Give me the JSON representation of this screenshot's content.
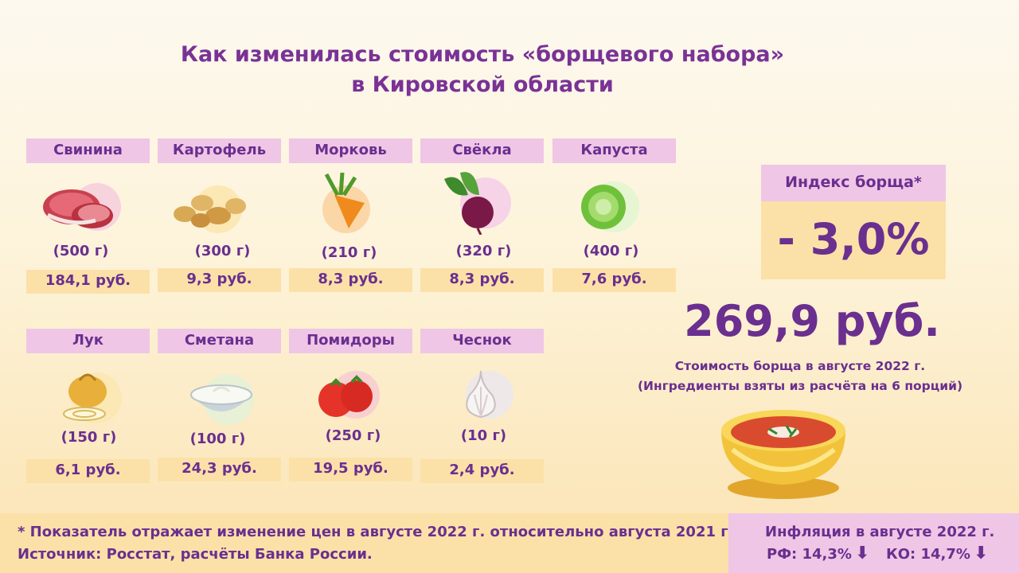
{
  "title": {
    "line1": "Как изменилась стоимость «борщевого набора»",
    "line2": "в Кировской области"
  },
  "ingredients": [
    {
      "name": "Свинина",
      "weight": "(500 г)",
      "price": "184,1 руб.",
      "icon": "pork-icon"
    },
    {
      "name": "Картофель",
      "weight": "(300 г)",
      "price": "9,3 руб.",
      "icon": "potato-icon"
    },
    {
      "name": "Морковь",
      "weight": "(210 г)",
      "price": "8,3 руб.",
      "icon": "carrot-icon"
    },
    {
      "name": "Свёкла",
      "weight": "(320 г)",
      "price": "8,3 руб.",
      "icon": "beet-icon"
    },
    {
      "name": "Капуста",
      "weight": "(400 г)",
      "price": "7,6 руб.",
      "icon": "cabbage-icon"
    },
    {
      "name": "Лук",
      "weight": "(150 г)",
      "price": "6,1 руб.",
      "icon": "onion-icon"
    },
    {
      "name": "Сметана",
      "weight": "(100 г)",
      "price": "24,3 руб.",
      "icon": "sour-cream-icon"
    },
    {
      "name": "Помидоры",
      "weight": "(250 г)",
      "price": "19,5 руб.",
      "icon": "tomato-icon"
    },
    {
      "name": "Чеснок",
      "weight": "(10 г)",
      "price": "2,4 руб.",
      "icon": "garlic-icon"
    }
  ],
  "index": {
    "label": "Индекс борща*",
    "value": "- 3,0%"
  },
  "total": {
    "value": "269,9 руб.",
    "caption1": "Стоимость борща в августе 2022 г.",
    "caption2": "(Ингредиенты взяты из расчёта на 6 порций)"
  },
  "footer": {
    "note": "* Показатель отражает изменение цен в августе 2022 г. относительно августа 2021 г.",
    "source": "Источник: Росстат, расчёты Банка России.",
    "inflation_title": "Инфляция в августе 2022 г.",
    "rf": "РФ: 14,3%",
    "ko": "КО: 14,7%",
    "down_arrow": "⬇"
  },
  "colors": {
    "text": "#6a2f8f",
    "label_bg": "#efc6e6",
    "price_bg": "#fbe1a8"
  }
}
